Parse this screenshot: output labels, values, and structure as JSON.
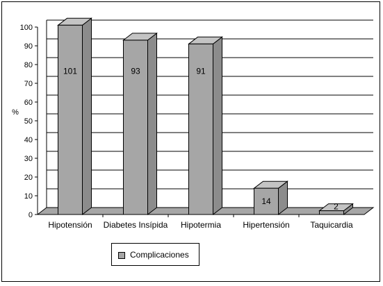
{
  "chart_data": {
    "type": "bar",
    "categories": [
      "Hipotensión",
      "Diabetes Insípida",
      "Hipotermia",
      "Hipertensión",
      "Taquicardia"
    ],
    "series": [
      {
        "name": "Complicaciones",
        "values": [
          101,
          93,
          91,
          14,
          2
        ]
      }
    ],
    "ylabel": "%",
    "ylim": [
      0,
      100
    ],
    "yticks": [
      "0",
      "10",
      "20",
      "30",
      "40",
      "50",
      "60",
      "70",
      "80",
      "90",
      "100"
    ],
    "grid": true,
    "three_d": true,
    "legend_position": "bottom-left",
    "colors": {
      "bar_front": "#a6a6a6",
      "bar_side": "#8c8c8c",
      "bar_top": "#c4c4c4",
      "floor": "#a6a6a6",
      "gridline": "#000000"
    }
  }
}
